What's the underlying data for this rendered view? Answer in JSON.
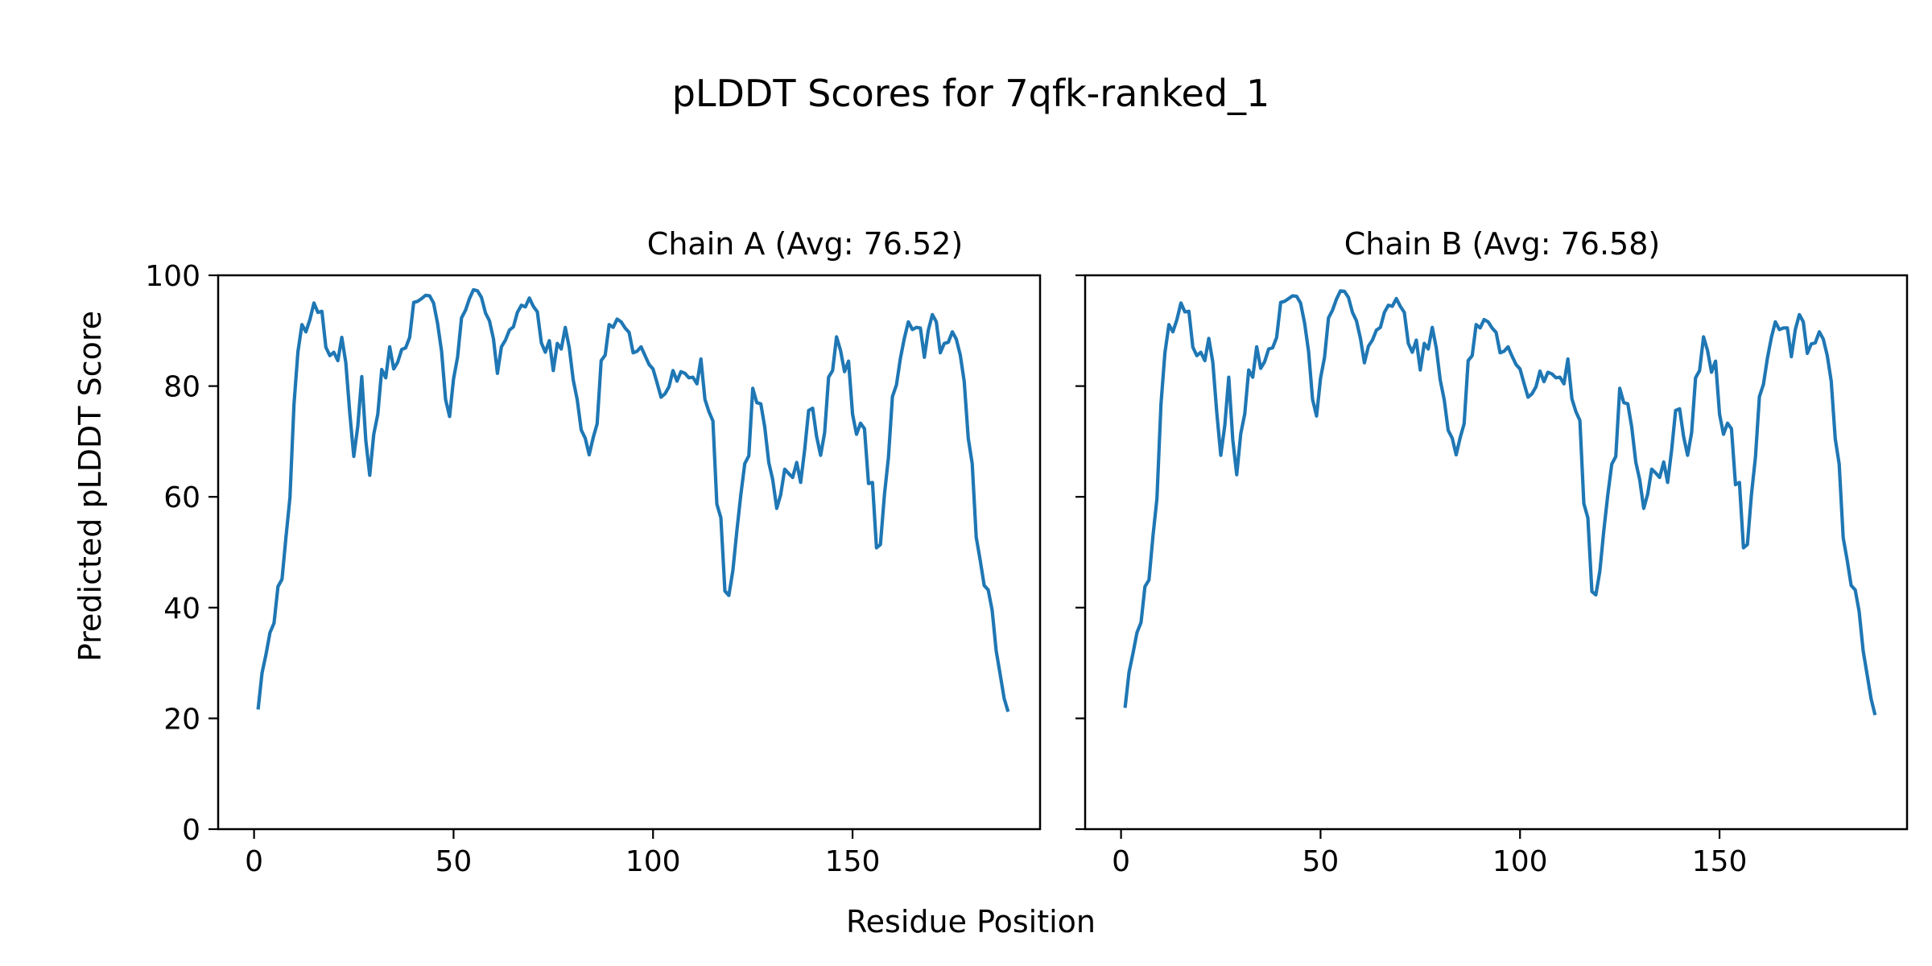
{
  "figure": {
    "title": "pLDDT Scores for 7qfk-ranked_1",
    "xlabel": "Residue Position",
    "ylabel": "Predicted pLDDT Score"
  },
  "chart_data": [
    {
      "type": "line",
      "title": "Chain A (Avg: 76.52)",
      "xlabel": "Residue Position",
      "ylabel": "Predicted pLDDT Score",
      "xlim": [
        -9,
        197
      ],
      "ylim": [
        0,
        100
      ],
      "xticks": [
        0,
        50,
        100,
        150
      ],
      "yticks": [
        0,
        20,
        40,
        60,
        80,
        100
      ],
      "color": "#1f77b4",
      "grid": false,
      "x_start": 1,
      "x_step": 1,
      "y": [
        21.6,
        28.2,
        31.6,
        35.5,
        37.2,
        43.8,
        45.1,
        52.8,
        59.9,
        76.7,
        86.2,
        91.1,
        89.8,
        92,
        95,
        93.3,
        93.5,
        87,
        85.5,
        86.1,
        84.6,
        88.8,
        84.2,
        75,
        67.3,
        72.8,
        81.7,
        70.2,
        63.9,
        71.3,
        74.9,
        83,
        81.5,
        87.1,
        83.1,
        84.3,
        86.6,
        86.9,
        88.8,
        95.1,
        95.3,
        95.8,
        96.4,
        96.3,
        95,
        91.3,
        86.2,
        77.6,
        74.5,
        81.3,
        85.2,
        92.3,
        93.7,
        95.8,
        97.4,
        97.2,
        96,
        93.2,
        91.8,
        88.5,
        82.3,
        87.1,
        88.3,
        90.1,
        90.7,
        93.3,
        94.6,
        94.3,
        95.9,
        94.4,
        93.4,
        87.8,
        86.1,
        88.2,
        82.8,
        87.7,
        86.7,
        90.6,
        86.9,
        81.1,
        77.5,
        72.1,
        70.6,
        67.6,
        70.7,
        73.2,
        84.6,
        85.6,
        91.1,
        90.6,
        92.1,
        91.6,
        90.5,
        89.7,
        86,
        86.3,
        87.1,
        85.5,
        83.9,
        83.1,
        80.6,
        78,
        78.6,
        79.9,
        82.8,
        80.9,
        82.6,
        82.3,
        81.5,
        81.6,
        80.4,
        84.9,
        77.6,
        75.4,
        73.7,
        58.7,
        56.2,
        43,
        42.2,
        46.7,
        53.8,
        60.4,
        66,
        67.4,
        79.6,
        77,
        76.8,
        72.6,
        66.2,
        63.1,
        57.9,
        60.4,
        65,
        64.2,
        63.5,
        66.2,
        62.6,
        68.5,
        75.6,
        76,
        70.9,
        67.5,
        71.6,
        81.6,
        82.8,
        88.9,
        86.4,
        82.6,
        84.5,
        74.9,
        71.3,
        73.3,
        72.3,
        62.4,
        62.6,
        50.8,
        51.4,
        60.4,
        67.2,
        78.1,
        80.2,
        85,
        88.7,
        91.6,
        90.2,
        90.6,
        90.5,
        85.2,
        90.1,
        92.9,
        91.6,
        86,
        87.7,
        87.9,
        89.8,
        88.5,
        85.6,
        80.8,
        70.6,
        66,
        52.7,
        48.5,
        44,
        43.2,
        39.5,
        32.2,
        28,
        23.6,
        21.2
      ]
    },
    {
      "type": "line",
      "title": "Chain B (Avg: 76.58)",
      "xlabel": "Residue Position",
      "ylabel": "",
      "xlim": [
        -9,
        197
      ],
      "ylim": [
        0,
        100
      ],
      "xticks": [
        0,
        50,
        100,
        150
      ],
      "yticks": [
        0,
        20,
        40,
        60,
        80,
        100
      ],
      "color": "#1f77b4",
      "grid": false,
      "x_start": 1,
      "x_step": 1,
      "y": [
        21.9,
        28.3,
        31.8,
        35.5,
        37.3,
        43.8,
        45,
        53,
        59.7,
        76.7,
        86,
        91.1,
        89.8,
        92,
        95,
        93.4,
        93.5,
        87,
        85.5,
        86.1,
        84.6,
        88.6,
        84.3,
        75.1,
        67.5,
        72.9,
        81.6,
        70.3,
        64,
        71.4,
        75,
        82.9,
        81.6,
        87.1,
        83.2,
        84.4,
        86.7,
        86.9,
        88.8,
        95.1,
        95.3,
        95.8,
        96.3,
        96.2,
        95,
        91.4,
        86.2,
        77.6,
        74.6,
        81.4,
        85.2,
        92.3,
        93.7,
        95.7,
        97.2,
        97.1,
        96,
        93.3,
        91.8,
        88.6,
        84.2,
        87.2,
        88.3,
        90.1,
        90.6,
        93.3,
        94.6,
        94.4,
        95.8,
        94.4,
        93.3,
        87.7,
        86.1,
        88.3,
        82.9,
        87.7,
        86.7,
        90.6,
        86.9,
        81.1,
        77.5,
        72,
        70.6,
        67.6,
        70.7,
        73.2,
        84.6,
        85.5,
        91.1,
        90.5,
        92,
        91.6,
        90.5,
        89.7,
        86,
        86.3,
        87.1,
        85.4,
        83.9,
        83.1,
        80.5,
        78,
        78.6,
        79.9,
        82.7,
        80.8,
        82.5,
        82.2,
        81.5,
        81.6,
        80.4,
        84.9,
        77.7,
        75.4,
        73.8,
        58.8,
        56.2,
        42.9,
        42.3,
        46.6,
        53.9,
        60.4,
        65.9,
        67.3,
        79.6,
        77,
        76.8,
        72.6,
        66.3,
        63.1,
        57.9,
        60.5,
        65,
        64.3,
        63.5,
        66.3,
        62.6,
        68.5,
        75.6,
        75.9,
        70.9,
        67.5,
        71.6,
        81.5,
        82.8,
        88.9,
        86.4,
        82.5,
        84.5,
        74.9,
        71.3,
        73.3,
        72.3,
        62.2,
        62.6,
        50.8,
        51.4,
        60.4,
        67.2,
        78.1,
        80.3,
        85,
        88.8,
        91.6,
        90.2,
        90.5,
        90.5,
        85.3,
        90.2,
        92.9,
        91.6,
        85.9,
        87.6,
        87.8,
        89.8,
        88.5,
        85.5,
        80.9,
        70.5,
        65.9,
        52.6,
        48.5,
        44,
        43.2,
        39.3,
        32.2,
        27.9,
        23.5,
        20.6
      ]
    }
  ]
}
